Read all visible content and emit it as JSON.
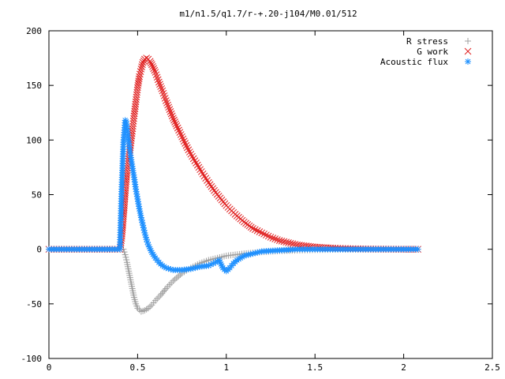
{
  "chart_data": {
    "type": "scatter",
    "title": "m1/n1.5/q1.7/r-+.20-j104/M0.01/512",
    "xlabel": "",
    "ylabel": "",
    "xlim": [
      0,
      2.5
    ],
    "ylim": [
      -100,
      200
    ],
    "xticks": [
      0,
      0.5,
      1,
      1.5,
      2,
      2.5
    ],
    "yticks": [
      -100,
      -50,
      0,
      50,
      100,
      150,
      200
    ],
    "xtick_labels": [
      "0",
      "0.5",
      "1",
      "1.5",
      "2",
      "2.5"
    ],
    "ytick_labels": [
      "-100",
      "-50",
      "0",
      "50",
      "100",
      "150",
      "200"
    ],
    "grid": false,
    "legend_position": "top-right",
    "series": [
      {
        "name": "R stress",
        "marker": "+",
        "color": "#a0a0a0",
        "x": [
          0.0,
          0.1,
          0.2,
          0.3,
          0.4,
          0.42,
          0.43,
          0.44,
          0.45,
          0.46,
          0.47,
          0.48,
          0.49,
          0.5,
          0.52,
          0.54,
          0.56,
          0.58,
          0.6,
          0.63,
          0.66,
          0.7,
          0.75,
          0.8,
          0.85,
          0.9,
          0.95,
          1.0,
          1.05,
          1.1,
          1.2,
          1.3,
          1.4,
          1.5,
          1.6,
          1.7,
          1.8,
          1.9,
          2.0,
          2.08
        ],
        "y": [
          0,
          0,
          0,
          0,
          0,
          0,
          -5,
          -12,
          -20,
          -28,
          -36,
          -44,
          -50,
          -54,
          -57,
          -56,
          -54,
          -51,
          -47,
          -42,
          -36,
          -29,
          -22,
          -17,
          -13,
          -10,
          -8,
          -6,
          -5,
          -4,
          -2.5,
          -1.5,
          -1,
          -0.5,
          -0.3,
          -0.2,
          -0.1,
          0,
          0,
          0
        ]
      },
      {
        "name": "G work",
        "marker": "x",
        "color": "#e02020",
        "x": [
          0.0,
          0.1,
          0.2,
          0.3,
          0.4,
          0.41,
          0.415,
          0.42,
          0.425,
          0.43,
          0.435,
          0.44,
          0.45,
          0.46,
          0.47,
          0.48,
          0.49,
          0.5,
          0.51,
          0.52,
          0.53,
          0.54,
          0.55,
          0.56,
          0.57,
          0.58,
          0.6,
          0.62,
          0.64,
          0.66,
          0.68,
          0.7,
          0.72,
          0.75,
          0.78,
          0.8,
          0.83,
          0.86,
          0.9,
          0.94,
          1.0,
          1.05,
          1.1,
          1.15,
          1.2,
          1.25,
          1.3,
          1.35,
          1.4,
          1.45,
          1.5,
          1.6,
          1.7,
          1.8,
          1.9,
          2.0,
          2.08
        ],
        "y": [
          0,
          0,
          0,
          0,
          0,
          10,
          20,
          30,
          40,
          52,
          62,
          72,
          83,
          95,
          108,
          122,
          135,
          148,
          158,
          165,
          171,
          174,
          175,
          174,
          172,
          169,
          162,
          153,
          145,
          136,
          128,
          120,
          113,
          103,
          93,
          87,
          79,
          71,
          61,
          52,
          40,
          32,
          25,
          19,
          15,
          11,
          8,
          6,
          4,
          3,
          2,
          1,
          0.5,
          0.2,
          0.1,
          0,
          0
        ]
      },
      {
        "name": "Acoustic flux",
        "marker": "*",
        "color": "#1e90ff",
        "x": [
          0.0,
          0.1,
          0.2,
          0.3,
          0.4,
          0.41,
          0.42,
          0.43,
          0.435,
          0.44,
          0.445,
          0.45,
          0.455,
          0.46,
          0.47,
          0.48,
          0.49,
          0.5,
          0.51,
          0.52,
          0.53,
          0.54,
          0.55,
          0.56,
          0.58,
          0.6,
          0.62,
          0.64,
          0.66,
          0.7,
          0.75,
          0.8,
          0.85,
          0.9,
          0.94,
          0.96,
          0.98,
          1.0,
          1.02,
          1.04,
          1.06,
          1.1,
          1.15,
          1.2,
          1.3,
          1.4,
          1.5,
          1.6,
          1.7,
          1.8,
          1.9,
          2.0,
          2.08
        ],
        "y": [
          0,
          0,
          0,
          0,
          0,
          55,
          98,
          118,
          117,
          112,
          105,
          99,
          92,
          86,
          76,
          66,
          55,
          46,
          37,
          29,
          22,
          15,
          9,
          4,
          -3,
          -8,
          -12,
          -15,
          -17,
          -19,
          -19,
          -18,
          -16,
          -15,
          -12,
          -10,
          -17,
          -20,
          -17,
          -13,
          -10,
          -6,
          -4,
          -2,
          -1,
          0,
          0,
          0,
          0,
          0,
          0,
          0,
          0
        ]
      }
    ]
  }
}
